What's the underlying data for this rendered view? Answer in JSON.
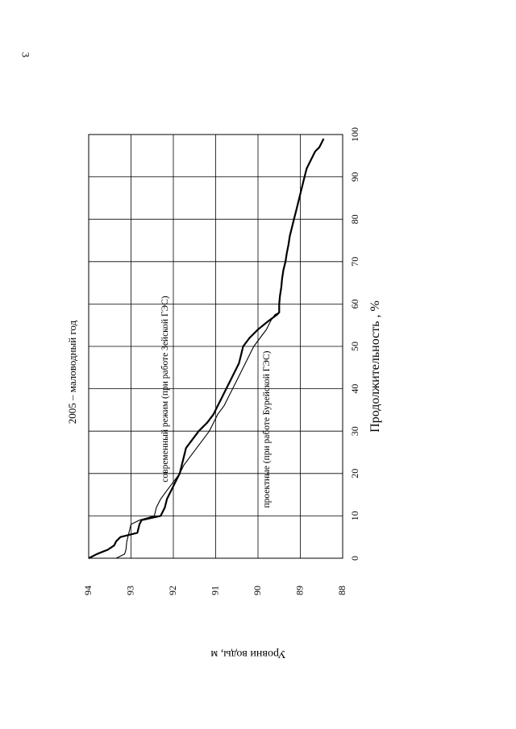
{
  "page_number": "3",
  "chart_data": {
    "type": "line",
    "title": "2005 – маловодный год",
    "xlabel": "Продолжительность , %",
    "ylabel": "Уровни воды, м",
    "xlim": [
      0,
      100
    ],
    "ylim": [
      88,
      94
    ],
    "x_ticks": [
      "0",
      "10",
      "20",
      "30",
      "40",
      "50",
      "60",
      "70",
      "80",
      "90",
      "100"
    ],
    "y_ticks": [
      "88",
      "89",
      "90",
      "91",
      "92",
      "93",
      "94"
    ],
    "grid": true,
    "series": [
      {
        "name": "современный режим (при работе Зейской ГЭС)",
        "color": "#000000",
        "width": 2.2,
        "x": [
          0,
          1,
          2,
          3,
          4,
          5,
          6,
          8,
          9,
          10,
          12,
          14,
          16,
          18,
          20,
          22,
          24,
          26,
          28,
          30,
          32,
          34,
          36,
          38,
          40,
          42,
          44,
          46,
          48,
          50,
          52,
          54,
          56,
          57.5,
          58,
          60,
          62,
          64,
          66,
          68,
          70,
          72,
          74,
          76,
          78,
          80,
          82,
          84,
          86,
          88,
          90,
          92,
          94,
          96,
          97,
          98,
          99
        ],
        "y": [
          94.0,
          93.8,
          93.55,
          93.4,
          93.35,
          93.25,
          92.85,
          92.8,
          92.75,
          92.3,
          92.2,
          92.15,
          92.05,
          91.95,
          91.85,
          91.8,
          91.75,
          91.7,
          91.55,
          91.4,
          91.2,
          91.05,
          90.95,
          90.85,
          90.75,
          90.65,
          90.55,
          90.45,
          90.4,
          90.35,
          90.2,
          90.0,
          89.75,
          89.55,
          89.5,
          89.5,
          89.48,
          89.45,
          89.43,
          89.4,
          89.35,
          89.32,
          89.28,
          89.25,
          89.2,
          89.15,
          89.1,
          89.05,
          89.0,
          88.95,
          88.9,
          88.85,
          88.75,
          88.65,
          88.55,
          88.5,
          88.45
        ]
      },
      {
        "name": "проектные (при работе Бурейской ГЭС)",
        "color": "#000000",
        "width": 1.1,
        "x": [
          0,
          1,
          2,
          4,
          6,
          8,
          9,
          10,
          12,
          14,
          16,
          18,
          20,
          22,
          24,
          26,
          28,
          30,
          32,
          34,
          36,
          38,
          40,
          42,
          44,
          46,
          48,
          50,
          52,
          54,
          56,
          57.5,
          58
        ],
        "y": [
          93.35,
          93.15,
          93.12,
          93.1,
          93.05,
          93.0,
          92.8,
          92.45,
          92.4,
          92.3,
          92.15,
          92.0,
          91.85,
          91.75,
          91.6,
          91.45,
          91.3,
          91.15,
          91.05,
          90.95,
          90.8,
          90.7,
          90.6,
          90.5,
          90.4,
          90.3,
          90.2,
          90.1,
          89.95,
          89.8,
          89.7,
          89.6,
          89.5
        ]
      }
    ]
  }
}
